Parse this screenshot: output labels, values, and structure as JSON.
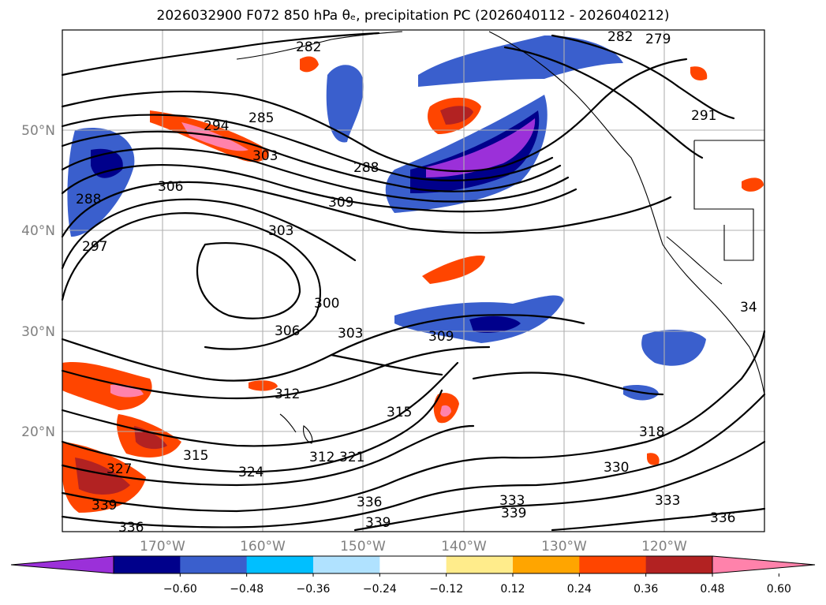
{
  "title": "2026032900 F072 850 hPa θₑ, precipitation PC (2026040112 - 2026040212)",
  "map": {
    "lon_range": [
      -180,
      -110
    ],
    "lat_range": [
      10,
      60
    ],
    "lon_ticks": [
      "170°W",
      "160°W",
      "150°W",
      "140°W",
      "130°W",
      "120°W"
    ],
    "lat_ticks": [
      "50°N",
      "40°N",
      "30°N",
      "20°N"
    ],
    "grid": true,
    "contour_field": "850 hPa θe",
    "contour_labels": [
      "285",
      "294",
      "303",
      "306",
      "288",
      "309",
      "303",
      "300",
      "306",
      "303",
      "309",
      "288",
      "297",
      "312",
      "315",
      "321",
      "312",
      "315",
      "324",
      "327",
      "339",
      "336",
      "339",
      "336",
      "333",
      "339",
      "330",
      "318",
      "333",
      "336",
      "279",
      "291",
      "282",
      "282",
      "34"
    ],
    "shaded_field": "precipitation PC"
  },
  "colorbar": {
    "ticks": [
      "−0.60",
      "−0.48",
      "−0.36",
      "−0.24",
      "−0.12",
      "0.12",
      "0.24",
      "0.36",
      "0.48",
      "0.60"
    ],
    "colors": [
      "#9b30d9",
      "#00008b",
      "#3a5fcd",
      "#00bfff",
      "#b0e2ff",
      "#ffffff",
      "#ffec8b",
      "#ffa500",
      "#ff4500",
      "#b22222",
      "#ff82ab"
    ],
    "extend": "both"
  }
}
